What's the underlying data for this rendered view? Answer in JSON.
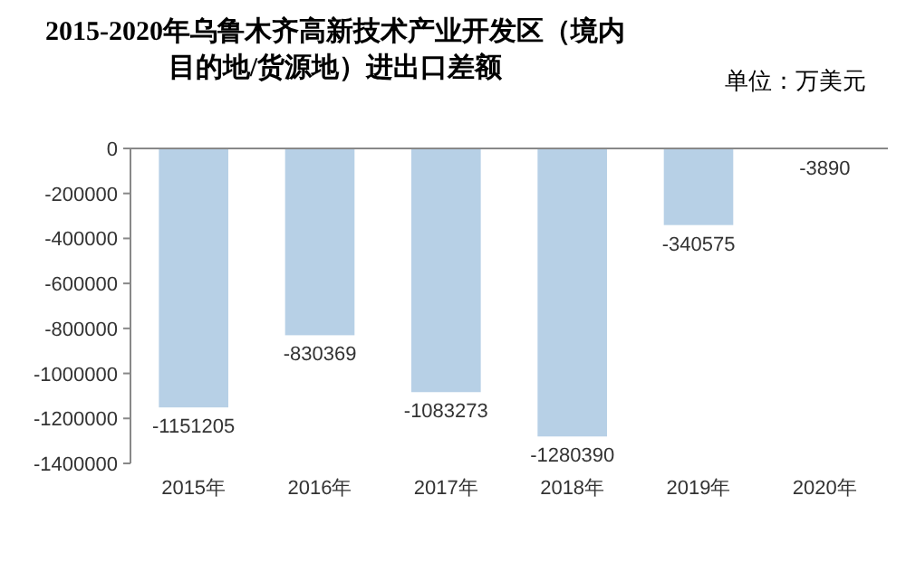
{
  "chart_data": {
    "type": "bar",
    "title": "2015-2020年乌鲁木齐高新技术产业开发区（境内目的地/货源地）进出口差额",
    "subtitle": "单位：万美元",
    "categories": [
      "2015年",
      "2016年",
      "2017年",
      "2018年",
      "2019年",
      "2020年"
    ],
    "values": [
      -1151205,
      -830369,
      -1083273,
      -1280390,
      -340575,
      -3890
    ],
    "color": "#b7d0e6",
    "ylim": [
      -1400000,
      0
    ],
    "yticks": [
      -1400000,
      -1200000,
      -1000000,
      -800000,
      -600000,
      -400000,
      -200000,
      0
    ],
    "data_labels": true
  }
}
